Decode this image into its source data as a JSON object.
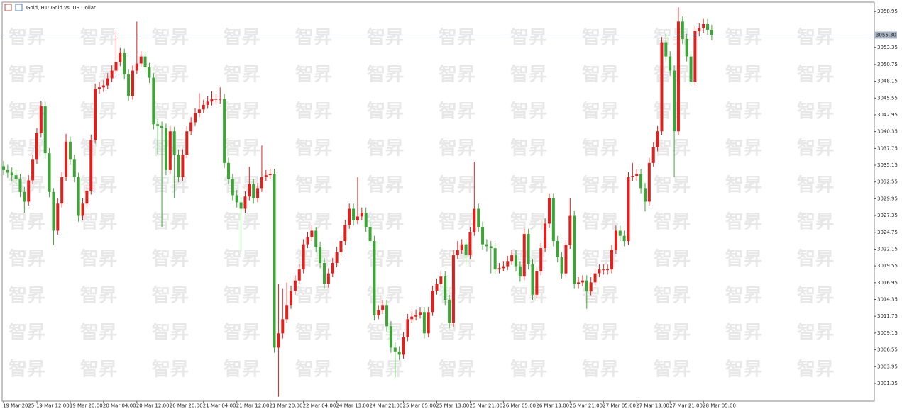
{
  "chart_data": {
    "type": "candlestick",
    "title": "Gold, H1:  Gold vs. US Dollar",
    "watermark": "智昇",
    "up_color": "#e0201c",
    "down_color": "#3da535",
    "grid": false,
    "ylim": [
      2998.6,
      3060.4
    ],
    "yticks": [
      3058.95,
      3053.35,
      3050.75,
      3048.15,
      3045.55,
      3042.95,
      3040.35,
      3037.75,
      3035.15,
      3032.55,
      3029.95,
      3027.35,
      3024.75,
      3022.15,
      3019.55,
      3016.95,
      3014.35,
      3011.75,
      3009.15,
      3006.55,
      3003.95,
      3001.35
    ],
    "current_price": {
      "value": 3055.3,
      "label": "3055.30"
    },
    "categories": [
      "19 Mar 2025",
      null,
      null,
      null,
      null,
      null,
      null,
      null,
      "19 Mar 12:00",
      null,
      null,
      null,
      null,
      null,
      null,
      null,
      "19 Mar 20:00",
      null,
      null,
      null,
      null,
      null,
      null,
      null,
      "20 Mar 04:00",
      null,
      null,
      null,
      null,
      null,
      null,
      null,
      "20 Mar 12:00",
      null,
      null,
      null,
      null,
      null,
      null,
      null,
      "20 Mar 20:00",
      null,
      null,
      null,
      null,
      null,
      null,
      null,
      "21 Mar 04:00",
      null,
      null,
      null,
      null,
      null,
      null,
      null,
      "21 Mar 12:00",
      null,
      null,
      null,
      null,
      null,
      null,
      null,
      "21 Mar 20:00",
      null,
      null,
      null,
      null,
      null,
      null,
      null,
      "22 Mar 04:00",
      null,
      null,
      null,
      null,
      null,
      null,
      null,
      "24 Mar 13:00",
      null,
      null,
      null,
      null,
      null,
      null,
      null,
      "24 Mar 21:00",
      null,
      null,
      null,
      null,
      null,
      null,
      null,
      "25 Mar 05:00",
      null,
      null,
      null,
      null,
      null,
      null,
      null,
      "25 Mar 13:00",
      null,
      null,
      null,
      null,
      null,
      null,
      null,
      "25 Mar 21:00",
      null,
      null,
      null,
      null,
      null,
      null,
      null,
      "26 Mar 05:00",
      null,
      null,
      null,
      null,
      null,
      null,
      null,
      "26 Mar 13:00",
      null,
      null,
      null,
      null,
      null,
      null,
      null,
      "26 Mar 21:00",
      null,
      null,
      null,
      null,
      null,
      null,
      null,
      "27 Mar 05:00",
      null,
      null,
      null,
      null,
      null,
      null,
      null,
      "27 Mar 13:00",
      null,
      null,
      null,
      null,
      null,
      null,
      null,
      "27 Mar 21:00",
      null,
      null,
      null,
      null,
      null,
      null,
      null,
      "28 Mar 05:00",
      null,
      null
    ],
    "ohlc": [
      [
        3035.0,
        3035.8,
        3033.6,
        3034.4
      ],
      [
        3034.4,
        3035.2,
        3033.2,
        3034.0
      ],
      [
        3034.0,
        3034.8,
        3032.6,
        3033.6
      ],
      [
        3033.6,
        3034.4,
        3031.9,
        3033.0
      ],
      [
        3033.0,
        3033.8,
        3030.2,
        3031.0
      ],
      [
        3031.0,
        3031.8,
        3027.8,
        3029.5
      ],
      [
        3029.5,
        3033.6,
        3028.9,
        3032.8
      ],
      [
        3032.8,
        3036.8,
        3032.2,
        3036.0
      ],
      [
        3036.0,
        3040.9,
        3035.3,
        3040.1
      ],
      [
        3040.1,
        3045.1,
        3039.5,
        3044.3
      ],
      [
        3044.3,
        3045.0,
        3036.2,
        3037.0
      ],
      [
        3037.0,
        3037.8,
        3030.2,
        3031.0
      ],
      [
        3031.0,
        3031.6,
        3022.8,
        3025.0
      ],
      [
        3025.0,
        3030.0,
        3024.4,
        3029.2
      ],
      [
        3029.2,
        3034.1,
        3028.6,
        3033.3
      ],
      [
        3033.3,
        3040.0,
        3032.7,
        3038.8
      ],
      [
        3038.8,
        3039.6,
        3035.2,
        3036.0
      ],
      [
        3036.0,
        3036.8,
        3032.5,
        3033.3
      ],
      [
        3033.3,
        3034.0,
        3026.4,
        3027.3
      ],
      [
        3027.3,
        3030.0,
        3026.6,
        3029.2
      ],
      [
        3029.2,
        3032.0,
        3028.6,
        3031.2
      ],
      [
        3031.2,
        3039.9,
        3030.6,
        3039.1
      ],
      [
        3039.1,
        3047.8,
        3038.5,
        3047.0
      ],
      [
        3047.0,
        3048.0,
        3046.2,
        3047.2
      ],
      [
        3047.2,
        3048.3,
        3046.5,
        3047.5
      ],
      [
        3047.5,
        3049.4,
        3046.9,
        3048.6
      ],
      [
        3048.6,
        3050.6,
        3048.0,
        3049.8
      ],
      [
        3049.8,
        3055.8,
        3049.2,
        3051.1
      ],
      [
        3051.1,
        3053.3,
        3050.5,
        3052.5
      ],
      [
        3052.5,
        3053.2,
        3048.4,
        3049.2
      ],
      [
        3049.2,
        3050.0,
        3045.1,
        3045.9
      ],
      [
        3045.9,
        3050.6,
        3045.3,
        3049.8
      ],
      [
        3049.8,
        3057.4,
        3049.2,
        3050.9
      ],
      [
        3050.9,
        3052.8,
        3050.3,
        3052.0
      ],
      [
        3052.0,
        3052.7,
        3049.5,
        3050.3
      ],
      [
        3050.3,
        3051.0,
        3047.9,
        3048.7
      ],
      [
        3048.7,
        3049.4,
        3040.7,
        3041.5
      ],
      [
        3041.5,
        3042.3,
        3036.9,
        3041.2
      ],
      [
        3041.2,
        3041.9,
        3025.6,
        3040.9
      ],
      [
        3040.9,
        3041.6,
        3033.6,
        3034.4
      ],
      [
        3034.4,
        3041.2,
        3033.8,
        3040.4
      ],
      [
        3040.4,
        3041.1,
        3030.0,
        3036.8
      ],
      [
        3036.8,
        3037.6,
        3032.5,
        3033.3
      ],
      [
        3033.3,
        3037.6,
        3032.7,
        3036.8
      ],
      [
        3036.8,
        3041.2,
        3036.2,
        3040.4
      ],
      [
        3040.4,
        3042.6,
        3039.8,
        3041.8
      ],
      [
        3041.8,
        3044.0,
        3041.2,
        3043.2
      ],
      [
        3043.2,
        3046.3,
        3042.6,
        3043.8
      ],
      [
        3043.8,
        3045.3,
        3043.2,
        3044.5
      ],
      [
        3044.5,
        3045.8,
        3043.9,
        3045.0
      ],
      [
        3045.0,
        3046.6,
        3044.4,
        3045.4
      ],
      [
        3045.4,
        3046.2,
        3044.6,
        3045.4
      ],
      [
        3045.4,
        3047.2,
        3044.6,
        3045.4
      ],
      [
        3045.4,
        3046.2,
        3034.7,
        3035.5
      ],
      [
        3035.5,
        3036.3,
        3032.2,
        3033.0
      ],
      [
        3033.0,
        3033.8,
        3029.7,
        3030.5
      ],
      [
        3030.5,
        3031.3,
        3028.6,
        3029.4
      ],
      [
        3029.4,
        3030.2,
        3021.8,
        3028.4
      ],
      [
        3028.4,
        3031.1,
        3027.8,
        3030.3
      ],
      [
        3030.3,
        3034.9,
        3029.7,
        3032.2
      ],
      [
        3032.2,
        3033.0,
        3029.2,
        3030.0
      ],
      [
        3030.0,
        3032.4,
        3029.4,
        3031.6
      ],
      [
        3031.6,
        3038.2,
        3031.0,
        3033.3
      ],
      [
        3033.3,
        3034.4,
        3032.7,
        3033.6
      ],
      [
        3033.6,
        3034.6,
        3033.0,
        3033.8
      ],
      [
        3033.8,
        3034.6,
        3006.1,
        3006.9
      ],
      [
        3006.9,
        3016.8,
        2999.3,
        3009.1
      ],
      [
        3009.1,
        3016.0,
        3008.3,
        3011.3
      ],
      [
        3011.3,
        3017.0,
        3010.7,
        3013.5
      ],
      [
        3013.5,
        3016.5,
        3012.9,
        3015.7
      ],
      [
        3015.7,
        3018.1,
        3015.1,
        3017.3
      ],
      [
        3017.3,
        3019.8,
        3016.7,
        3019.0
      ],
      [
        3019.0,
        3023.7,
        3018.4,
        3022.9
      ],
      [
        3022.9,
        3024.8,
        3022.3,
        3024.0
      ],
      [
        3024.0,
        3025.8,
        3023.4,
        3025.0
      ],
      [
        3025.0,
        3025.6,
        3021.7,
        3022.5
      ],
      [
        3022.5,
        3023.3,
        3019.2,
        3020.0
      ],
      [
        3020.0,
        3020.8,
        3016.0,
        3016.8
      ],
      [
        3016.8,
        3019.2,
        3016.2,
        3018.4
      ],
      [
        3018.4,
        3020.8,
        3017.8,
        3020.0
      ],
      [
        3020.0,
        3022.5,
        3019.4,
        3021.7
      ],
      [
        3021.7,
        3024.2,
        3021.1,
        3023.4
      ],
      [
        3023.4,
        3026.7,
        3022.8,
        3025.9
      ],
      [
        3025.9,
        3029.2,
        3025.3,
        3028.4
      ],
      [
        3028.4,
        3029.2,
        3025.8,
        3026.6
      ],
      [
        3026.6,
        3033.3,
        3026.0,
        3027.2
      ],
      [
        3027.2,
        3028.6,
        3026.6,
        3027.8
      ],
      [
        3027.8,
        3028.6,
        3024.8,
        3025.6
      ],
      [
        3025.6,
        3026.4,
        3022.6,
        3023.4
      ],
      [
        3023.4,
        3024.2,
        3011.1,
        3011.9
      ],
      [
        3011.9,
        3013.5,
        3011.3,
        3012.7
      ],
      [
        3012.7,
        3014.3,
        3012.1,
        3013.5
      ],
      [
        3013.5,
        3014.3,
        3009.4,
        3010.2
      ],
      [
        3010.2,
        3011.0,
        3006.1,
        3006.9
      ],
      [
        3006.9,
        3007.7,
        3002.3,
        3006.3
      ],
      [
        3006.3,
        3007.1,
        3005.0,
        3005.8
      ],
      [
        3005.8,
        3009.3,
        3005.2,
        3008.5
      ],
      [
        3008.5,
        3012.1,
        3007.9,
        3011.3
      ],
      [
        3011.3,
        3012.5,
        3010.7,
        3011.7
      ],
      [
        3011.7,
        3012.8,
        3011.1,
        3012.0
      ],
      [
        3012.0,
        3013.2,
        3011.4,
        3012.4
      ],
      [
        3012.4,
        3013.2,
        3008.3,
        3009.1
      ],
      [
        3009.1,
        3013.2,
        3008.5,
        3012.4
      ],
      [
        3012.4,
        3016.5,
        3011.8,
        3015.7
      ],
      [
        3015.7,
        3017.6,
        3015.1,
        3016.8
      ],
      [
        3016.8,
        3018.7,
        3016.2,
        3017.9
      ],
      [
        3017.9,
        3018.7,
        3013.5,
        3014.3
      ],
      [
        3014.3,
        3015.1,
        3009.9,
        3010.7
      ],
      [
        3010.7,
        3022.0,
        3010.1,
        3021.2
      ],
      [
        3021.2,
        3023.4,
        3020.6,
        3022.0
      ],
      [
        3022.0,
        3023.7,
        3021.4,
        3022.9
      ],
      [
        3022.9,
        3023.7,
        3019.7,
        3021.2
      ],
      [
        3021.2,
        3025.6,
        3020.6,
        3024.8
      ],
      [
        3024.8,
        3035.7,
        3024.2,
        3028.4
      ],
      [
        3028.4,
        3029.2,
        3024.8,
        3025.6
      ],
      [
        3025.6,
        3026.4,
        3022.1,
        3022.9
      ],
      [
        3022.9,
        3023.7,
        3021.8,
        3022.6
      ],
      [
        3022.6,
        3023.4,
        3018.4,
        3022.3
      ],
      [
        3022.3,
        3023.1,
        3018.2,
        3019.0
      ],
      [
        3019.0,
        3020.0,
        3018.4,
        3019.2
      ],
      [
        3019.2,
        3020.3,
        3018.7,
        3019.5
      ],
      [
        3019.5,
        3021.1,
        3018.9,
        3020.3
      ],
      [
        3020.3,
        3022.0,
        3019.7,
        3021.2
      ],
      [
        3021.2,
        3022.0,
        3018.7,
        3019.5
      ],
      [
        3019.5,
        3020.3,
        3017.1,
        3017.9
      ],
      [
        3017.9,
        3025.3,
        3017.3,
        3024.5
      ],
      [
        3024.5,
        3025.3,
        3019.0,
        3019.8
      ],
      [
        3019.8,
        3020.6,
        3014.3,
        3015.1
      ],
      [
        3015.1,
        3019.5,
        3014.5,
        3018.7
      ],
      [
        3018.7,
        3023.1,
        3018.1,
        3022.3
      ],
      [
        3022.3,
        3026.9,
        3021.7,
        3026.1
      ],
      [
        3026.1,
        3030.8,
        3025.5,
        3030.0
      ],
      [
        3030.0,
        3030.8,
        3022.6,
        3023.4
      ],
      [
        3023.4,
        3024.2,
        3020.1,
        3020.9
      ],
      [
        3020.9,
        3021.7,
        3017.6,
        3018.4
      ],
      [
        3018.4,
        3023.6,
        3017.8,
        3022.8
      ],
      [
        3022.8,
        3030.0,
        3022.2,
        3027.3
      ],
      [
        3027.3,
        3028.1,
        3016.0,
        3016.8
      ],
      [
        3016.8,
        3017.8,
        3016.0,
        3017.0
      ],
      [
        3017.0,
        3018.1,
        3016.4,
        3017.3
      ],
      [
        3017.3,
        3018.1,
        3012.9,
        3015.6
      ],
      [
        3015.6,
        3017.8,
        3015.0,
        3017.0
      ],
      [
        3017.0,
        3019.2,
        3016.4,
        3018.4
      ],
      [
        3018.4,
        3019.8,
        3017.8,
        3019.0
      ],
      [
        3019.0,
        3019.8,
        3018.2,
        3019.0
      ],
      [
        3019.0,
        3019.8,
        3018.2,
        3019.0
      ],
      [
        3019.0,
        3022.8,
        3018.4,
        3022.0
      ],
      [
        3022.0,
        3025.8,
        3021.4,
        3025.0
      ],
      [
        3025.0,
        3025.8,
        3023.4,
        3024.2
      ],
      [
        3024.2,
        3025.0,
        3022.6,
        3023.4
      ],
      [
        3023.4,
        3034.1,
        3022.8,
        3033.3
      ],
      [
        3033.3,
        3035.5,
        3032.7,
        3033.5
      ],
      [
        3033.5,
        3034.6,
        3032.7,
        3033.8
      ],
      [
        3033.8,
        3034.6,
        3030.8,
        3031.6
      ],
      [
        3031.6,
        3032.4,
        3028.0,
        3029.5
      ],
      [
        3029.5,
        3036.3,
        3028.9,
        3035.5
      ],
      [
        3035.5,
        3038.7,
        3034.9,
        3037.9
      ],
      [
        3037.9,
        3041.2,
        3037.3,
        3040.4
      ],
      [
        3040.4,
        3055.0,
        3039.8,
        3054.2
      ],
      [
        3054.2,
        3055.5,
        3051.2,
        3052.0
      ],
      [
        3052.0,
        3052.8,
        3049.0,
        3049.8
      ],
      [
        3049.8,
        3050.6,
        3033.3,
        3040.4
      ],
      [
        3040.4,
        3059.6,
        3039.8,
        3057.4
      ],
      [
        3057.4,
        3058.2,
        3053.9,
        3054.7
      ],
      [
        3054.7,
        3055.5,
        3051.2,
        3052.0
      ],
      [
        3052.0,
        3052.8,
        3047.3,
        3048.1
      ],
      [
        3048.1,
        3056.7,
        3047.5,
        3055.9
      ],
      [
        3055.9,
        3057.2,
        3055.1,
        3056.4
      ],
      [
        3056.4,
        3057.8,
        3055.6,
        3057.0
      ],
      [
        3057.0,
        3057.8,
        3055.3,
        3056.1
      ],
      [
        3056.1,
        3056.9,
        3054.5,
        3055.3
      ]
    ]
  }
}
